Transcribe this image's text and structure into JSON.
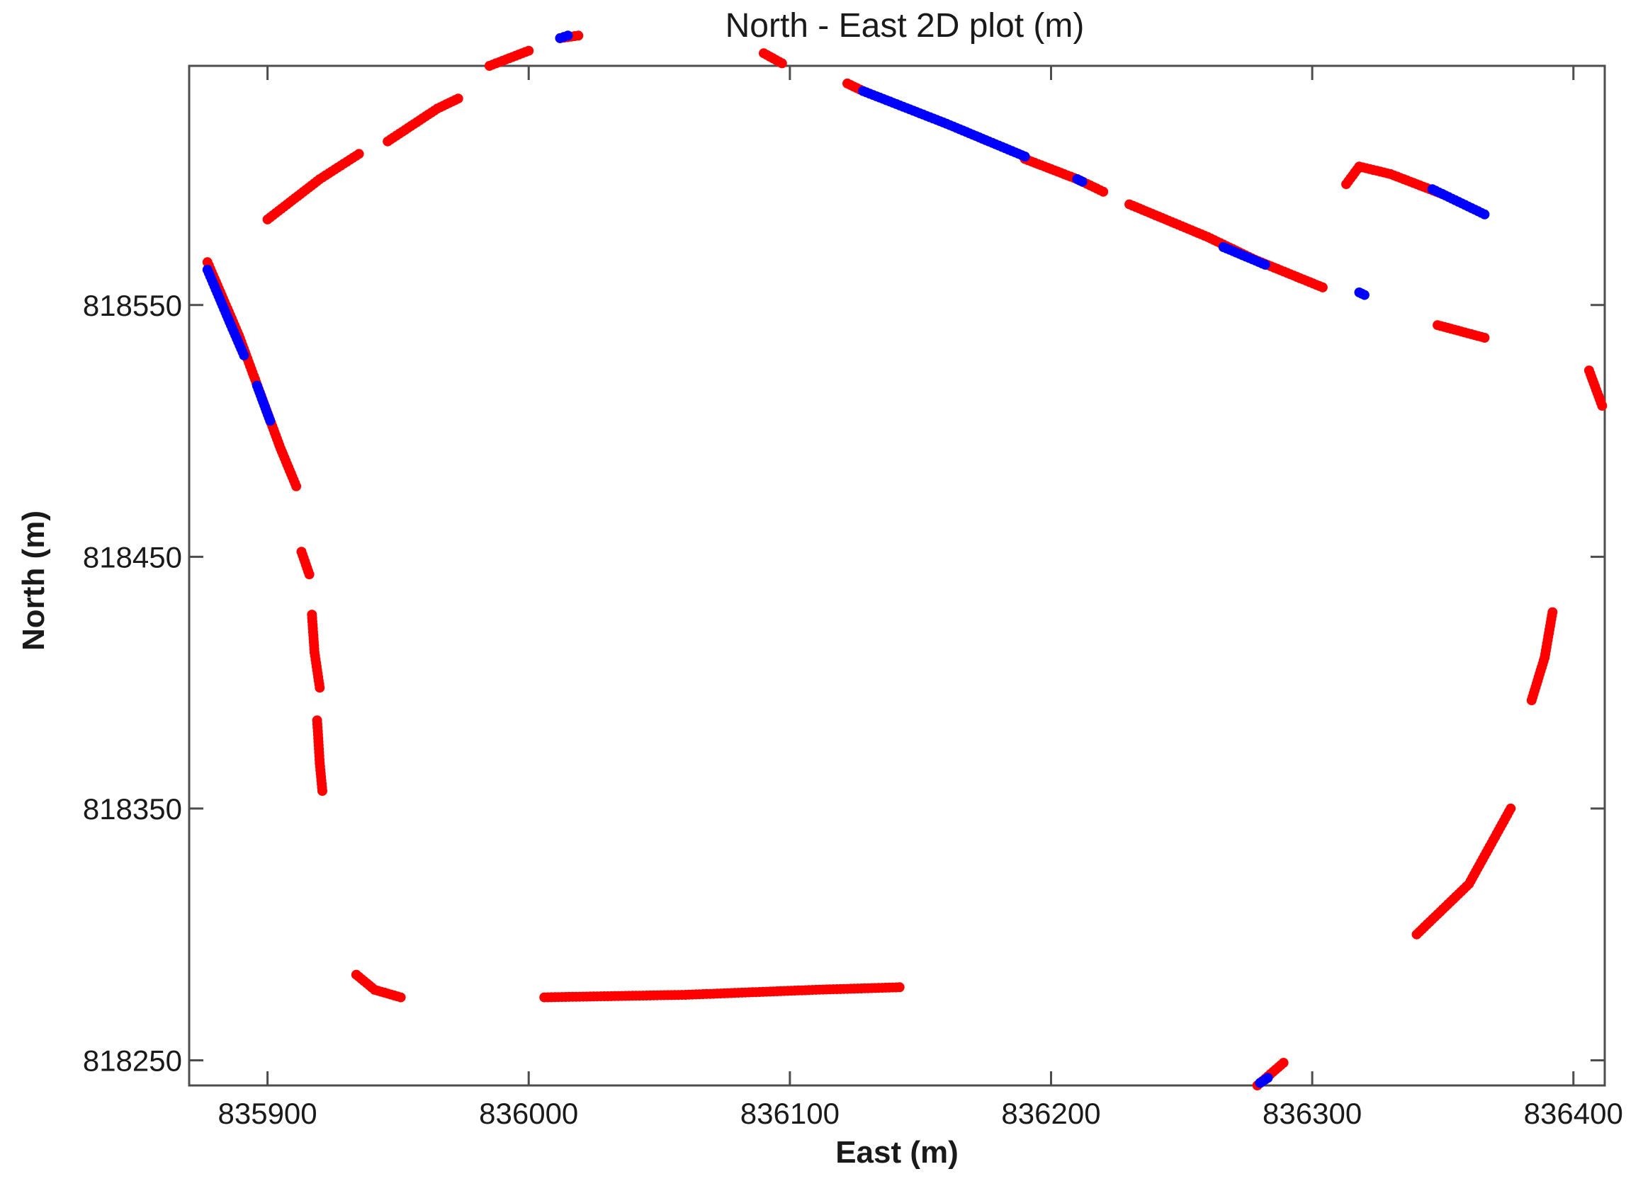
{
  "chart_data": {
    "type": "scatter",
    "title": "North - East 2D plot (m)",
    "xlabel": "East (m)",
    "ylabel": "North (m)",
    "xlim": [
      835870,
      836412
    ],
    "ylim": [
      818240,
      818645
    ],
    "xticks": [
      835900,
      836000,
      836100,
      836200,
      836300,
      836400
    ],
    "xtick_labels": [
      "835900",
      "836000",
      "836100",
      "836200",
      "836300",
      "836400"
    ],
    "yticks": [
      818250,
      818350,
      818450,
      818550
    ],
    "ytick_labels": [
      "818250",
      "818350",
      "818450",
      "818550"
    ],
    "grid": false,
    "legend": "none",
    "colors": {
      "red": "#ff0000",
      "blue": "#0000ff",
      "axis": "#4d4d4d"
    },
    "series": [
      {
        "color": "red",
        "segments": [
          [
            [
              835877,
              818567
            ],
            [
              835889,
              818538
            ],
            [
              835900,
              818507
            ],
            [
              835905,
              818493
            ],
            [
              835911,
              818478
            ]
          ],
          [
            [
              835913,
              818452
            ],
            [
              835916,
              818443
            ]
          ],
          [
            [
              835917,
              818427
            ],
            [
              835918,
              818412
            ],
            [
              835920,
              818398
            ]
          ],
          [
            [
              835919,
              818385
            ],
            [
              835920,
              818368
            ],
            [
              835921,
              818357
            ]
          ],
          [
            [
              835934,
              818284
            ],
            [
              835941,
              818278
            ],
            [
              835951,
              818275
            ]
          ],
          [
            [
              836006,
              818275
            ],
            [
              836060,
              818276
            ],
            [
              836110,
              818278
            ],
            [
              836142,
              818279
            ]
          ],
          [
            [
              835900,
              818584
            ],
            [
              835920,
              818600
            ],
            [
              835935,
              818610
            ]
          ],
          [
            [
              835946,
              818615
            ],
            [
              835965,
              818628
            ],
            [
              835973,
              818632
            ]
          ],
          [
            [
              835985,
              818645
            ],
            [
              836000,
              818651
            ]
          ],
          [
            [
              836012,
              818656
            ],
            [
              836019,
              818657
            ]
          ],
          [
            [
              836090,
              818650
            ],
            [
              836097,
              818646
            ]
          ],
          [
            [
              836122,
              818638
            ],
            [
              836128,
              818635
            ]
          ],
          [
            [
              836190,
              818608
            ],
            [
              836210,
              818600
            ],
            [
              836220,
              818595
            ]
          ],
          [
            [
              836230,
              818590
            ],
            [
              836260,
              818577
            ],
            [
              836278,
              818568
            ],
            [
              836304,
              818557
            ]
          ],
          [
            [
              836313,
              818598
            ],
            [
              836318,
              818605
            ],
            [
              836330,
              818602
            ],
            [
              836350,
              818594
            ]
          ],
          [
            [
              836348,
              818542
            ],
            [
              836366,
              818537
            ]
          ],
          [
            [
              836406,
              818524
            ],
            [
              836411,
              818510
            ]
          ],
          [
            [
              836392,
              818428
            ],
            [
              836389,
              818410
            ],
            [
              836384,
              818393
            ]
          ],
          [
            [
              836376,
              818350
            ],
            [
              836360,
              818320
            ],
            [
              836340,
              818300
            ]
          ],
          [
            [
              836279,
              818240
            ],
            [
              836289,
              818249
            ]
          ]
        ]
      },
      {
        "color": "blue",
        "segments": [
          [
            [
              835877,
              818564
            ],
            [
              835886,
              818542
            ],
            [
              835891,
              818530
            ]
          ],
          [
            [
              835896,
              818518
            ],
            [
              835901,
              818504
            ]
          ],
          [
            [
              836128,
              818635
            ],
            [
              836160,
              818622
            ],
            [
              836190,
              818609
            ]
          ],
          [
            [
              836210,
              818600
            ],
            [
              836212,
              818599
            ]
          ],
          [
            [
              836266,
              818573
            ],
            [
              836282,
              818566
            ]
          ],
          [
            [
              836318,
              818555
            ],
            [
              836320,
              818554
            ]
          ],
          [
            [
              836346,
              818596
            ],
            [
              836366,
              818586
            ]
          ],
          [
            [
              836012,
              818656
            ],
            [
              836015,
              818657
            ]
          ],
          [
            [
              836280,
              818241
            ],
            [
              836283,
              818243
            ]
          ]
        ]
      }
    ]
  }
}
